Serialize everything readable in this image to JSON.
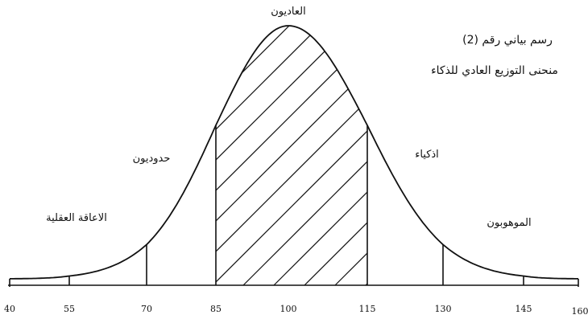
{
  "chart_data": {
    "type": "area",
    "caption": {
      "line1": "رسم بياني رقم (2)",
      "line2": "منحنى التوزيع العادي للذكاء"
    },
    "x_ticks": [
      "40",
      "55",
      "70",
      "85",
      "100",
      "115",
      "130",
      "145",
      "160"
    ],
    "x_range": [
      40,
      160
    ],
    "mean": 100,
    "std_dev": 15,
    "boundaries": [
      55,
      70,
      85,
      115,
      130,
      145
    ],
    "shaded_region": [
      85,
      115
    ],
    "regions": [
      {
        "label": "الاعاقة العقلية",
        "from": 55,
        "to": 70
      },
      {
        "label": "حدوديون",
        "from": 70,
        "to": 85
      },
      {
        "label": "العاديون",
        "from": 85,
        "to": 115
      },
      {
        "label": "اذكياء",
        "from": 115,
        "to": 130
      },
      {
        "label": "الموهوبون",
        "from": 130,
        "to": 145
      }
    ]
  }
}
